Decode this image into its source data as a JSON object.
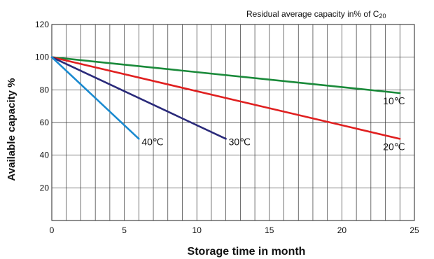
{
  "chart_data": {
    "type": "line",
    "title": "",
    "subtitle_main": "Residual average capacity in% of C",
    "subtitle_sub": "20",
    "xlabel": "Storage time in month",
    "ylabel": "Available capacity %",
    "xlim": [
      0,
      25
    ],
    "ylim": [
      0,
      120
    ],
    "xticks": [
      0,
      5,
      10,
      15,
      20,
      25
    ],
    "yticks": [
      20,
      40,
      60,
      80,
      100,
      120
    ],
    "grid": true,
    "x_minor_step": 1,
    "series": [
      {
        "name": "10℃",
        "color": "#1a8a3a",
        "x": [
          0,
          24
        ],
        "y": [
          100,
          78
        ]
      },
      {
        "name": "20℃",
        "color": "#e02020",
        "x": [
          0,
          24
        ],
        "y": [
          100,
          50
        ]
      },
      {
        "name": "30℃",
        "color": "#2a2a7a",
        "x": [
          0,
          12
        ],
        "y": [
          100,
          50
        ]
      },
      {
        "name": "40℃",
        "color": "#1a8ad0",
        "x": [
          0,
          6
        ],
        "y": [
          100,
          50
        ]
      }
    ]
  }
}
